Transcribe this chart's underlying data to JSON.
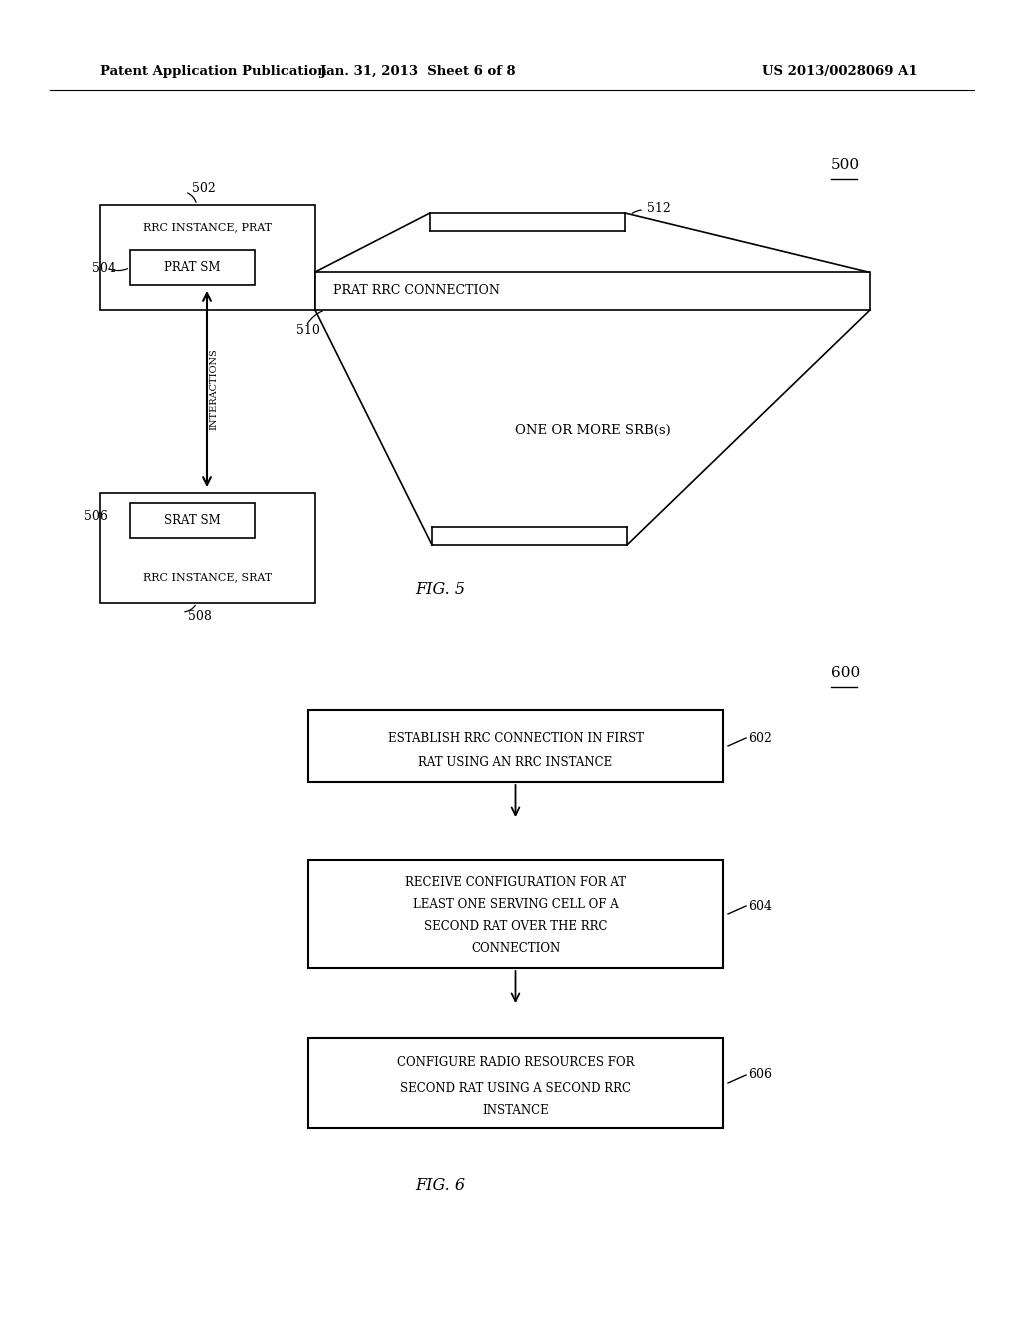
{
  "bg_color": "#ffffff",
  "header_left": "Patent Application Publication",
  "header_mid": "Jan. 31, 2013  Sheet 6 of 8",
  "header_right": "US 2013/0028069 A1",
  "fig5_label": "FIG. 5",
  "fig6_label": "FIG. 6",
  "fig5_ref": "500",
  "fig6_ref": "600",
  "interactions_text": "INTERACTIONS",
  "prat_rrc_text": "PRAT RRC CONNECTION",
  "srb_text": "ONE OR MORE SRB(s)",
  "label_502": "502",
  "label_504": "504",
  "label_506": "506",
  "label_508": "508",
  "label_510": "510",
  "label_512": "512",
  "label_602": "602",
  "label_604": "604",
  "label_606": "606",
  "rrc_prat": "RRC INSTANCE, PRAT",
  "prat_sm": "PRAT SM",
  "srat_sm": "SRAT SM",
  "rrc_srat": "RRC INSTANCE, SRAT",
  "box602_line1": "ESTABLISH RRC CONNECTION IN FIRST",
  "box602_line2": "RAT USING AN RRC INSTANCE",
  "box604_line1": "RECEIVE CONFIGURATION FOR AT",
  "box604_line2": "LEAST ONE SERVING CELL OF A",
  "box604_line3": "SECOND RAT OVER THE RRC",
  "box604_line4": "CONNECTION",
  "box606_line1": "CONFIGURE RADIO RESOURCES FOR",
  "box606_line2": "SECOND RAT USING A SECOND RRC",
  "box606_line3": "INSTANCE"
}
